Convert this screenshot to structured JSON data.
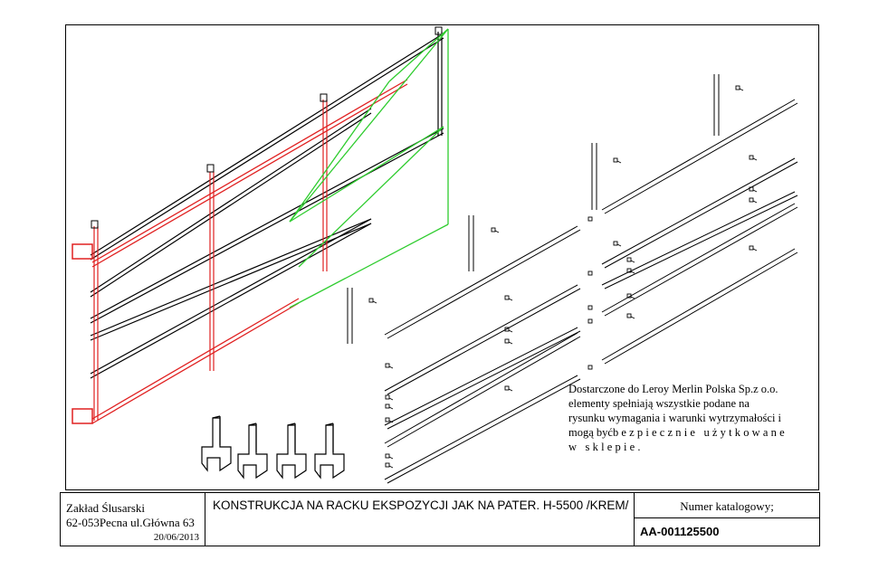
{
  "note": {
    "line1": "Dostarczone do Leroy Merlin Polska Sp.z o.o.",
    "line2": "elementy spełniają wszystkie podane na",
    "line3": "rysunku wymagania i warunki wytrzymałości i",
    "line4a": "mogą być",
    "line4b": "bezpiecznie użytkowane",
    "line5": "w sklepie."
  },
  "title_block": {
    "company_name": "Zakład Ślusarski",
    "company_address": "62-053Pecna ul.Główna 63",
    "date": "20/06/2013",
    "drawing_title": "KONSTRUKCJA NA RACKU EKSPOZYCJI JAK NA PATER. H-5500 /KREM/",
    "catalog_label": "Numer katalogowy;",
    "catalog_number": "AA-001125500"
  },
  "colors": {
    "line": "#000000",
    "highlight_red": "#e02020",
    "highlight_green": "#2ecc2e"
  }
}
